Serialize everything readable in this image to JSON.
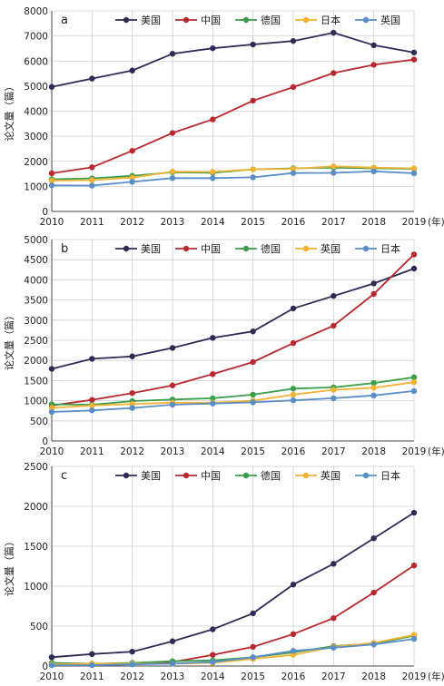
{
  "chart_data": [
    {
      "type": "line",
      "panel": "a",
      "ylabel": "论文量（篇）",
      "x_unit": "(年)",
      "x": [
        2010,
        2011,
        2012,
        2013,
        2014,
        2015,
        2016,
        2017,
        2018,
        2019
      ],
      "ylim": [
        0,
        8000
      ],
      "yticks": [
        0,
        1000,
        2000,
        3000,
        4000,
        5000,
        6000,
        7000,
        8000
      ],
      "grid": true,
      "legend_position": "top",
      "series": [
        {
          "name": "美国",
          "color": "#2e2c54",
          "values": [
            4970,
            5300,
            5620,
            6290,
            6510,
            6660,
            6800,
            7130,
            6630,
            6340
          ]
        },
        {
          "name": "中国",
          "color": "#b8282f",
          "values": [
            1520,
            1760,
            2420,
            3130,
            3670,
            4420,
            4960,
            5520,
            5850,
            6060
          ]
        },
        {
          "name": "德国",
          "color": "#3a9e4a",
          "values": [
            1280,
            1320,
            1420,
            1560,
            1540,
            1680,
            1720,
            1750,
            1720,
            1700
          ]
        },
        {
          "name": "日本",
          "color": "#f2b233",
          "values": [
            1230,
            1250,
            1350,
            1590,
            1580,
            1680,
            1700,
            1800,
            1750,
            1720
          ]
        },
        {
          "name": "英国",
          "color": "#5a8ec6",
          "values": [
            1040,
            1030,
            1180,
            1330,
            1330,
            1360,
            1530,
            1540,
            1600,
            1520
          ]
        }
      ]
    },
    {
      "type": "line",
      "panel": "b",
      "ylabel": "论文量（篇）",
      "x_unit": "(年)",
      "x": [
        2010,
        2011,
        2012,
        2013,
        2014,
        2015,
        2016,
        2017,
        2018,
        2019
      ],
      "ylim": [
        0,
        5000
      ],
      "yticks": [
        0,
        500,
        1000,
        1500,
        2000,
        2500,
        3000,
        3500,
        4000,
        4500,
        5000
      ],
      "grid": true,
      "legend_position": "top",
      "series": [
        {
          "name": "美国",
          "color": "#2e2c54",
          "values": [
            1790,
            2040,
            2100,
            2310,
            2560,
            2720,
            3290,
            3600,
            3910,
            4280
          ]
        },
        {
          "name": "中国",
          "color": "#b8282f",
          "values": [
            880,
            1020,
            1190,
            1380,
            1660,
            1960,
            2430,
            2860,
            3650,
            4630
          ]
        },
        {
          "name": "德国",
          "color": "#3a9e4a",
          "values": [
            910,
            900,
            990,
            1030,
            1060,
            1150,
            1300,
            1330,
            1440,
            1580
          ]
        },
        {
          "name": "英国",
          "color": "#f2b233",
          "values": [
            820,
            880,
            920,
            950,
            950,
            1000,
            1150,
            1270,
            1320,
            1460
          ]
        },
        {
          "name": "日本",
          "color": "#5a8ec6",
          "values": [
            720,
            760,
            820,
            900,
            930,
            960,
            1010,
            1060,
            1130,
            1240
          ]
        }
      ]
    },
    {
      "type": "line",
      "panel": "c",
      "ylabel": "论文量（篇）",
      "x_unit": "(年)",
      "x": [
        2010,
        2011,
        2012,
        2013,
        2014,
        2015,
        2016,
        2017,
        2018,
        2019
      ],
      "ylim": [
        0,
        2500
      ],
      "yticks": [
        0,
        500,
        1000,
        1500,
        2000,
        2500
      ],
      "grid": true,
      "legend_position": "top",
      "series": [
        {
          "name": "美国",
          "color": "#2e2c54",
          "values": [
            110,
            150,
            180,
            310,
            460,
            660,
            1020,
            1280,
            1600,
            1920
          ]
        },
        {
          "name": "中国",
          "color": "#b8282f",
          "values": [
            20,
            20,
            30,
            50,
            140,
            240,
            400,
            600,
            920,
            1260
          ]
        },
        {
          "name": "德国",
          "color": "#3a9e4a",
          "values": [
            40,
            30,
            40,
            60,
            70,
            110,
            170,
            250,
            280,
            380
          ]
        },
        {
          "name": "英国",
          "color": "#f2b233",
          "values": [
            20,
            30,
            30,
            30,
            40,
            90,
            140,
            240,
            290,
            390
          ]
        },
        {
          "name": "日本",
          "color": "#5a8ec6",
          "values": [
            10,
            10,
            20,
            30,
            50,
            110,
            190,
            230,
            270,
            340
          ]
        }
      ]
    }
  ]
}
